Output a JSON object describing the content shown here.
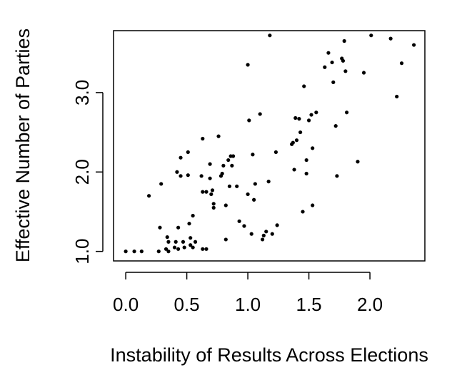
{
  "chart_data": {
    "type": "scatter",
    "title": "",
    "xlabel": "Instability of Results Across Elections",
    "ylabel": "Effective Number of Parties",
    "xlim": [
      -0.1,
      2.45
    ],
    "ylim": [
      0.88,
      3.78
    ],
    "xticks": [
      0.0,
      0.5,
      1.0,
      1.5,
      2.0
    ],
    "xtick_labels": [
      "0.0",
      "0.5",
      "1.0",
      "1.5",
      "2.0"
    ],
    "yticks": [
      1.0,
      2.0,
      3.0
    ],
    "ytick_labels": [
      "1.0",
      "2.0",
      "3.0"
    ],
    "grid": false,
    "legend": "none",
    "point_color": "#000000",
    "series": [
      {
        "points": [
          [
            0.0,
            1.0
          ],
          [
            0.07,
            1.0
          ],
          [
            0.13,
            1.0
          ],
          [
            0.27,
            1.0
          ],
          [
            0.33,
            1.03
          ],
          [
            0.35,
            1.0
          ],
          [
            0.4,
            1.05
          ],
          [
            0.43,
            1.03
          ],
          [
            0.48,
            1.05
          ],
          [
            0.53,
            1.08
          ],
          [
            0.55,
            1.05
          ],
          [
            0.63,
            1.03
          ],
          [
            0.66,
            1.03
          ],
          [
            0.35,
            1.12
          ],
          [
            0.41,
            1.12
          ],
          [
            0.47,
            1.12
          ],
          [
            0.53,
            1.17
          ],
          [
            0.34,
            1.18
          ],
          [
            0.57,
            1.12
          ],
          [
            0.28,
            1.3
          ],
          [
            0.43,
            1.3
          ],
          [
            0.52,
            1.35
          ],
          [
            0.55,
            1.45
          ],
          [
            0.19,
            1.7
          ],
          [
            0.29,
            1.85
          ],
          [
            0.42,
            2.0
          ],
          [
            0.45,
            1.95
          ],
          [
            0.45,
            2.18
          ],
          [
            0.51,
            2.25
          ],
          [
            0.51,
            1.96
          ],
          [
            0.62,
            1.95
          ],
          [
            0.63,
            1.75
          ],
          [
            0.63,
            2.42
          ],
          [
            0.66,
            1.75
          ],
          [
            0.69,
            2.1
          ],
          [
            0.69,
            1.92
          ],
          [
            0.7,
            1.72
          ],
          [
            0.71,
            1.77
          ],
          [
            0.72,
            1.55
          ],
          [
            0.72,
            1.6
          ],
          [
            0.76,
            2.45
          ],
          [
            0.78,
            1.95
          ],
          [
            0.79,
            1.98
          ],
          [
            0.8,
            2.08
          ],
          [
            0.82,
            1.58
          ],
          [
            0.82,
            1.15
          ],
          [
            0.84,
            2.15
          ],
          [
            0.85,
            1.82
          ],
          [
            0.86,
            2.2
          ],
          [
            0.87,
            2.08
          ],
          [
            0.88,
            2.2
          ],
          [
            0.91,
            1.82
          ],
          [
            0.93,
            1.38
          ],
          [
            0.97,
            1.32
          ],
          [
            1.0,
            1.72
          ],
          [
            1.0,
            3.35
          ],
          [
            1.01,
            2.65
          ],
          [
            1.03,
            1.22
          ],
          [
            1.04,
            2.22
          ],
          [
            1.05,
            1.65
          ],
          [
            1.06,
            1.85
          ],
          [
            1.1,
            2.73
          ],
          [
            1.12,
            1.15
          ],
          [
            1.13,
            1.2
          ],
          [
            1.15,
            1.25
          ],
          [
            1.17,
            1.88
          ],
          [
            1.18,
            3.72
          ],
          [
            1.2,
            1.22
          ],
          [
            1.23,
            2.25
          ],
          [
            1.24,
            1.33
          ],
          [
            1.36,
            2.35
          ],
          [
            1.37,
            2.37
          ],
          [
            1.38,
            2.03
          ],
          [
            1.39,
            2.68
          ],
          [
            1.4,
            2.4
          ],
          [
            1.42,
            2.67
          ],
          [
            1.43,
            2.5
          ],
          [
            1.45,
            1.5
          ],
          [
            1.46,
            3.08
          ],
          [
            1.48,
            2.15
          ],
          [
            1.48,
            1.98
          ],
          [
            1.5,
            2.65
          ],
          [
            1.52,
            2.72
          ],
          [
            1.53,
            1.58
          ],
          [
            1.53,
            2.3
          ],
          [
            1.56,
            2.75
          ],
          [
            1.63,
            3.32
          ],
          [
            1.66,
            3.5
          ],
          [
            1.69,
            3.38
          ],
          [
            1.7,
            3.13
          ],
          [
            1.72,
            2.58
          ],
          [
            1.73,
            1.95
          ],
          [
            1.77,
            3.43
          ],
          [
            1.78,
            3.4
          ],
          [
            1.79,
            3.65
          ],
          [
            1.8,
            3.27
          ],
          [
            1.81,
            2.75
          ],
          [
            1.9,
            2.13
          ],
          [
            1.95,
            3.25
          ],
          [
            2.01,
            3.72
          ],
          [
            2.17,
            3.68
          ],
          [
            2.22,
            2.95
          ],
          [
            2.26,
            3.37
          ],
          [
            2.36,
            3.6
          ]
        ]
      }
    ]
  }
}
